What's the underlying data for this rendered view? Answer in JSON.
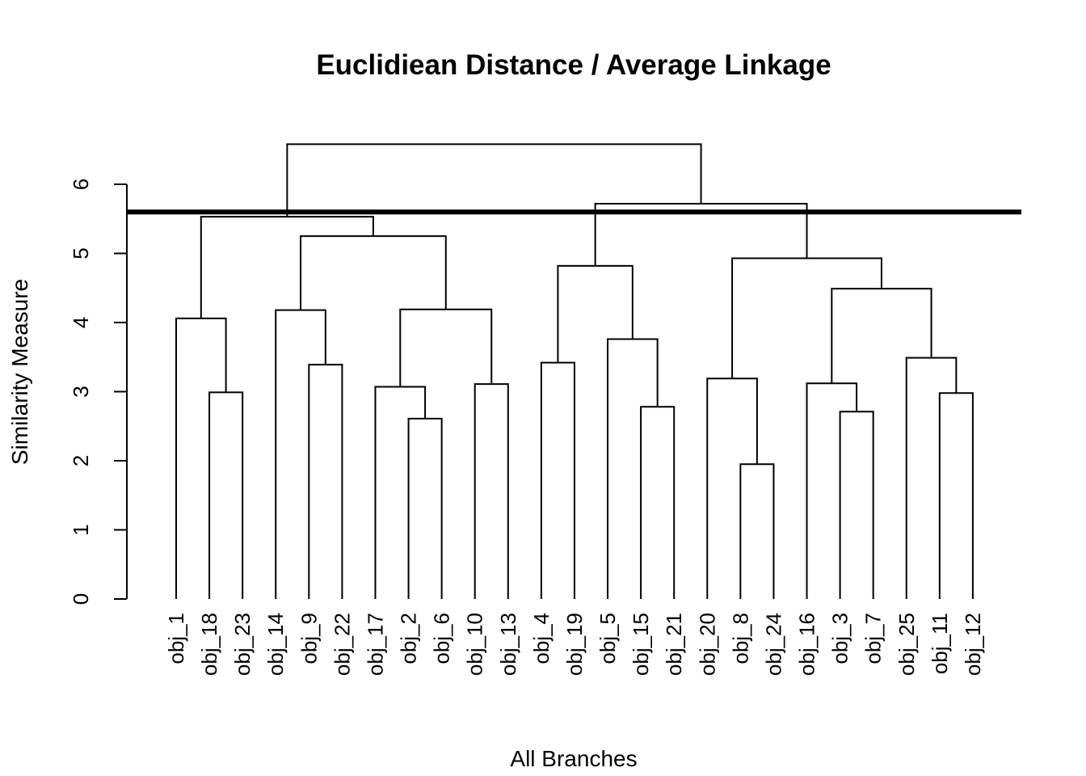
{
  "chart_data": {
    "type": "dendrogram",
    "title": "Euclidiean Distance / Average Linkage",
    "xlabel": "All Branches",
    "ylabel": "Similarity Measure",
    "ylim": [
      0,
      6
    ],
    "yticks": [
      "0",
      "1",
      "2",
      "3",
      "4",
      "5",
      "6"
    ],
    "cut_height": 5.6,
    "leaves": [
      "obj_1",
      "obj_18",
      "obj_23",
      "obj_14",
      "obj_9",
      "obj_22",
      "obj_17",
      "obj_2",
      "obj_6",
      "obj_10",
      "obj_13",
      "obj_4",
      "obj_19",
      "obj_5",
      "obj_15",
      "obj_21",
      "obj_20",
      "obj_8",
      "obj_24",
      "obj_16",
      "obj_3",
      "obj_7",
      "obj_25",
      "obj_11",
      "obj_12"
    ],
    "merges": [
      {
        "a": "obj_18",
        "b": "obj_23",
        "height": 2.99
      },
      {
        "a": "obj_1",
        "b": 0,
        "height": 4.06
      },
      {
        "a": "obj_9",
        "b": "obj_22",
        "height": 3.39
      },
      {
        "a": "obj_14",
        "b": 2,
        "height": 4.18
      },
      {
        "a": "obj_2",
        "b": "obj_6",
        "height": 2.61
      },
      {
        "a": "obj_17",
        "b": 4,
        "height": 3.07
      },
      {
        "a": "obj_10",
        "b": "obj_13",
        "height": 3.11
      },
      {
        "a": 5,
        "b": 6,
        "height": 4.19
      },
      {
        "a": 3,
        "b": 7,
        "height": 5.25
      },
      {
        "a": 1,
        "b": 8,
        "height": 5.53
      },
      {
        "a": "obj_4",
        "b": "obj_19",
        "height": 3.42
      },
      {
        "a": "obj_15",
        "b": "obj_21",
        "height": 2.78
      },
      {
        "a": "obj_5",
        "b": 11,
        "height": 3.76
      },
      {
        "a": 10,
        "b": 12,
        "height": 4.82
      },
      {
        "a": "obj_8",
        "b": "obj_24",
        "height": 1.95
      },
      {
        "a": "obj_20",
        "b": 14,
        "height": 3.19
      },
      {
        "a": "obj_3",
        "b": "obj_7",
        "height": 2.71
      },
      {
        "a": "obj_16",
        "b": 16,
        "height": 3.12
      },
      {
        "a": "obj_11",
        "b": "obj_12",
        "height": 2.98
      },
      {
        "a": "obj_25",
        "b": 18,
        "height": 3.49
      },
      {
        "a": 17,
        "b": 19,
        "height": 4.49
      },
      {
        "a": 15,
        "b": 20,
        "height": 4.93
      },
      {
        "a": 13,
        "b": 21,
        "height": 5.72
      },
      {
        "a": 9,
        "b": 22,
        "height": 6.58
      }
    ]
  }
}
